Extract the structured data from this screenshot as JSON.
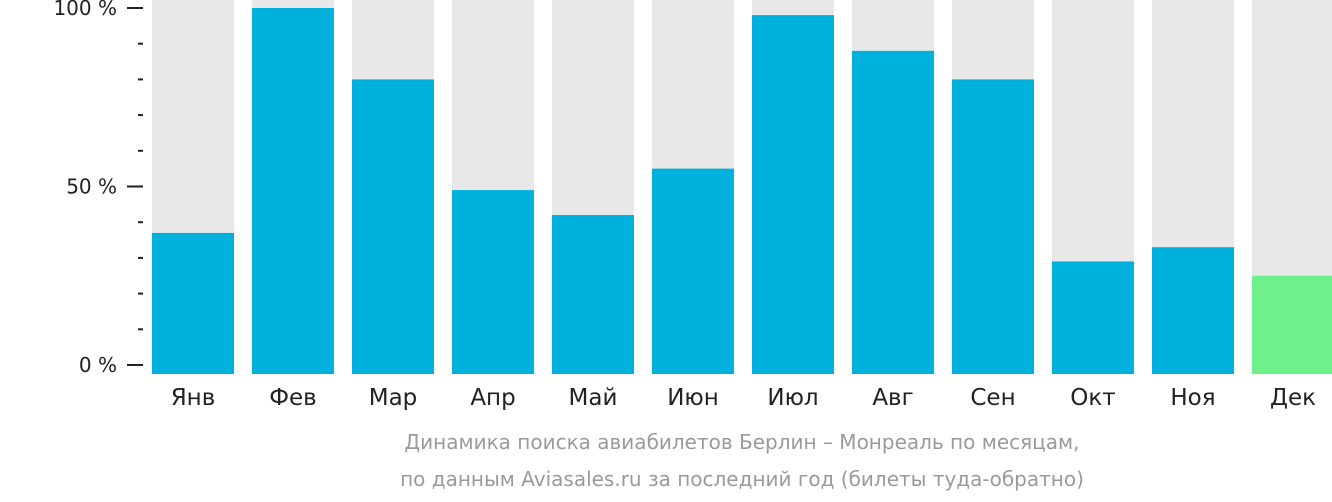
{
  "chart_data": {
    "type": "bar",
    "categories": [
      "Янв",
      "Фев",
      "Мар",
      "Апр",
      "Май",
      "Июн",
      "Июл",
      "Авг",
      "Сен",
      "Окт",
      "Ноя",
      "Дек"
    ],
    "values": [
      37,
      100,
      80,
      49,
      42,
      55,
      98,
      88,
      80,
      29,
      33,
      25
    ],
    "ylim": [
      0,
      100
    ],
    "yticks": [
      {
        "value": 0,
        "label": "0 %"
      },
      {
        "value": 50,
        "label": "50 %"
      },
      {
        "value": 100,
        "label": "100 %"
      }
    ],
    "minor_tick_step": 10,
    "highlight_index": 11,
    "background_bars": true,
    "grid": false,
    "colors": {
      "bar": "#00b0dd",
      "highlight": "#6ff08b",
      "track": "#e8e8e8",
      "axis": "#222222"
    }
  },
  "caption": {
    "line1": "Динамика поиска авиабилетов Берлин – Монреаль по месяцам,",
    "line2": "по данным Aviasales.ru за последний год (билеты туда-обратно)"
  }
}
